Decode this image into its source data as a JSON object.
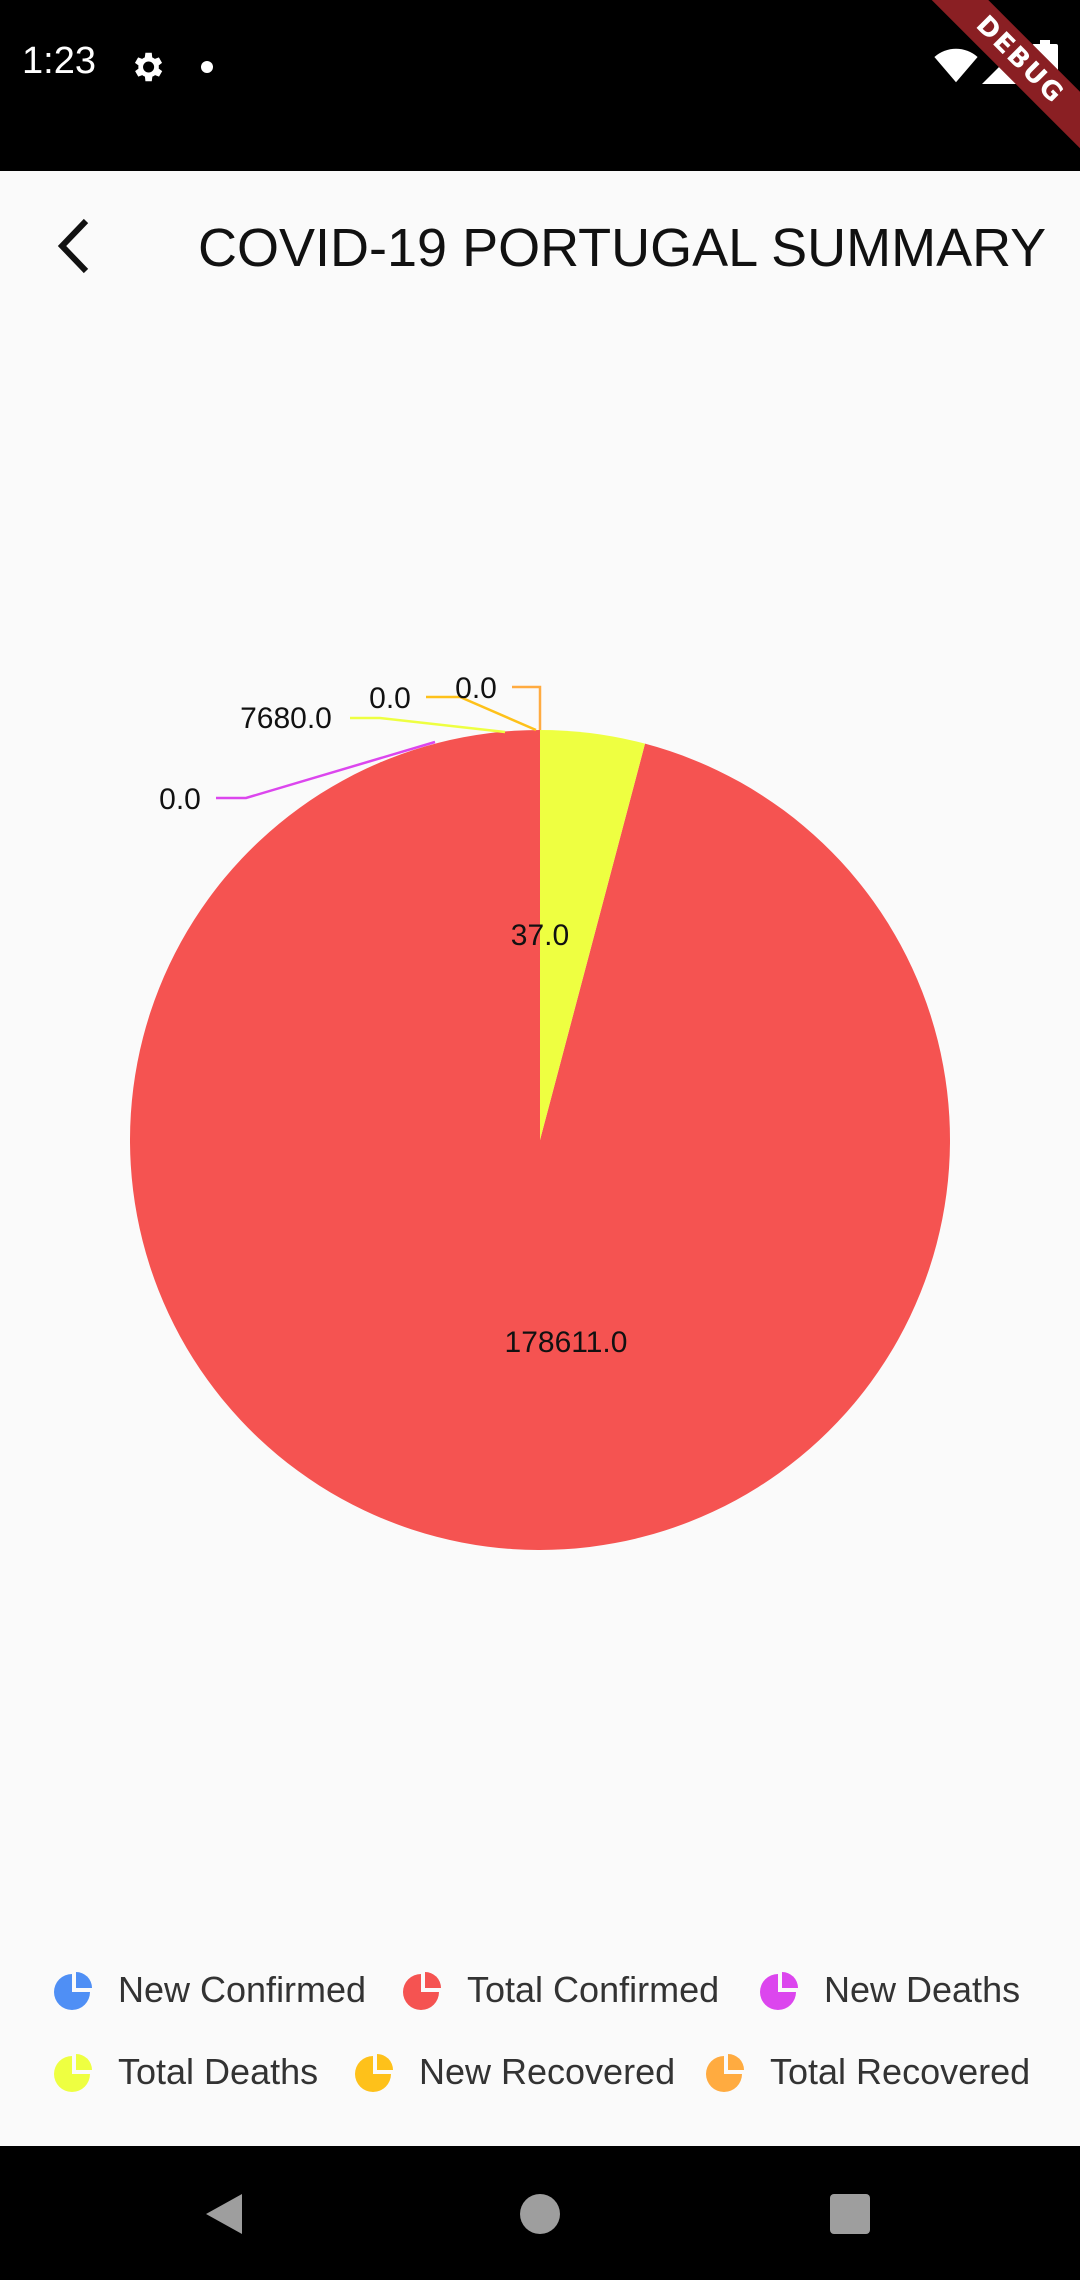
{
  "status_bar": {
    "time": "1:23",
    "icons": [
      "gear-icon",
      "dot-icon",
      "wifi-icon",
      "signal-icon",
      "battery-icon"
    ]
  },
  "debug_banner": {
    "label": "DEBUG"
  },
  "app_bar": {
    "back_icon": "chevron-left-icon",
    "title": "COVID-19 PORTUGAL SUMMARY"
  },
  "chart_data": {
    "type": "pie",
    "slices": [
      {
        "name": "New Confirmed",
        "value": 0,
        "label": "",
        "color": "#4f8ff5"
      },
      {
        "name": "Total Confirmed",
        "value": 178611,
        "label": "178611.0",
        "color": "#f55351"
      },
      {
        "name": "New Deaths",
        "value": 0,
        "label": "0.0",
        "color": "#dc46ee"
      },
      {
        "name": "Total Deaths",
        "value": 7680,
        "label": "7680.0",
        "color": "#eeff41"
      },
      {
        "name": "New Recovered",
        "value": 0,
        "label": "0.0",
        "color": "#fec11a"
      },
      {
        "name": "Total Recovered",
        "value": 0,
        "label": "0.0",
        "color": "#ffab40"
      }
    ],
    "inner_label": "37.0",
    "legend_placement": "bottom"
  },
  "legend": [
    {
      "label": "New Confirmed",
      "color": "#4f8ff5"
    },
    {
      "label": "Total Confirmed",
      "color": "#f55351"
    },
    {
      "label": "New Deaths",
      "color": "#dc46ee"
    },
    {
      "label": "Total Deaths",
      "color": "#eeff41"
    },
    {
      "label": "New Recovered",
      "color": "#fec11a"
    },
    {
      "label": "Total Recovered",
      "color": "#ffab40"
    }
  ],
  "nav_bar": {
    "buttons": [
      "back-triangle-icon",
      "home-circle-icon",
      "recents-square-icon"
    ]
  }
}
